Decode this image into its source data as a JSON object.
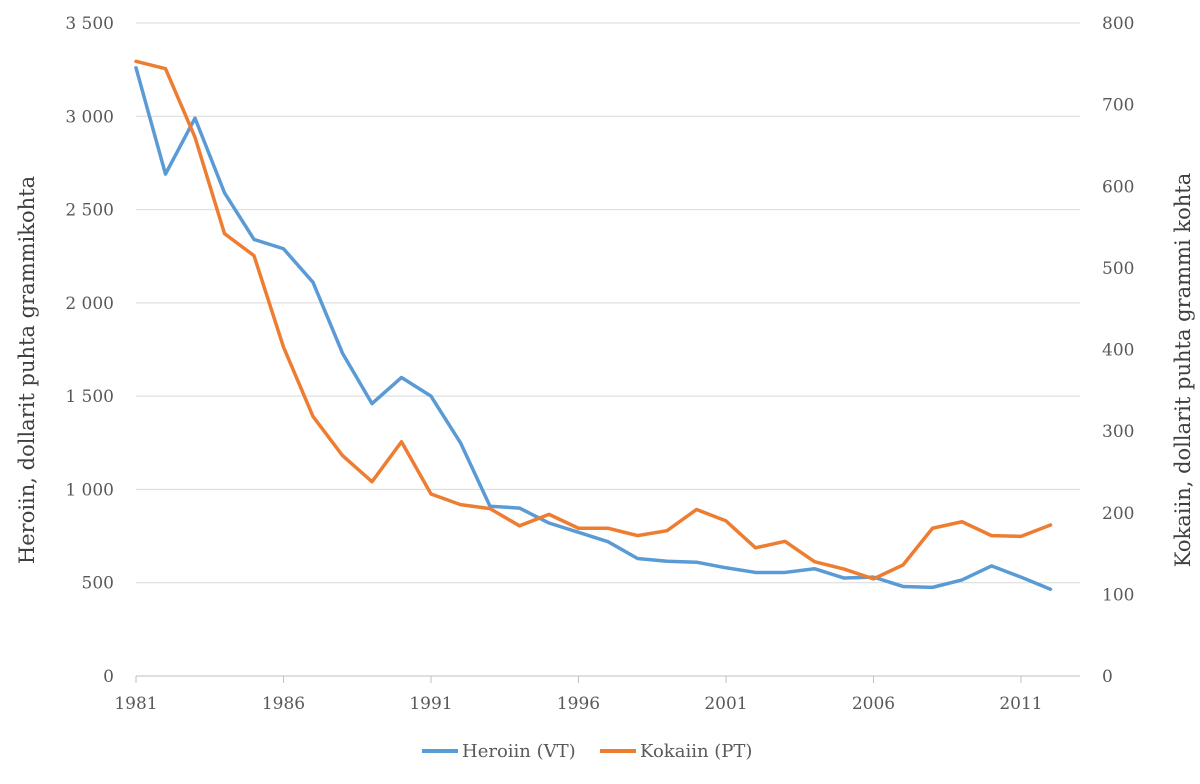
{
  "chart_data": {
    "type": "line",
    "title": "",
    "xlabel": "",
    "ylabel_left": "Heroiin, dollarit puhta grammikohta",
    "ylabel_right": "Kokaiin, dollarit puhta grammi kohta",
    "x": [
      1981,
      1982,
      1983,
      1984,
      1985,
      1986,
      1987,
      1988,
      1989,
      1990,
      1991,
      1992,
      1993,
      1994,
      1995,
      1996,
      1997,
      1998,
      1999,
      2000,
      2001,
      2002,
      2003,
      2004,
      2005,
      2006,
      2007,
      2008,
      2009,
      2010,
      2011,
      2012
    ],
    "xlim": [
      1981,
      2013
    ],
    "xticks": [
      1981,
      1986,
      1991,
      1996,
      2001,
      2006,
      2011
    ],
    "xtick_labels": [
      "1981",
      "1986",
      "1991",
      "1996",
      "2001",
      "2006",
      "2011"
    ],
    "ylim_left": [
      0,
      3500
    ],
    "yticks_left": [
      0,
      500,
      1000,
      1500,
      2000,
      2500,
      3000,
      3500
    ],
    "ytick_labels_left": [
      "0",
      "500",
      "1 000",
      "1 500",
      "2 000",
      "2 500",
      "3 000",
      "3 500"
    ],
    "ylim_right": [
      0,
      800
    ],
    "yticks_right": [
      0,
      100,
      200,
      300,
      400,
      500,
      600,
      700,
      800
    ],
    "ytick_labels_right": [
      "0",
      "100",
      "200",
      "300",
      "400",
      "500",
      "600",
      "700",
      "800"
    ],
    "grid": true,
    "legend_position": "bottom-center",
    "series": [
      {
        "name": "Heroiin (VT)",
        "axis": "left",
        "color": "#5b9bd5",
        "values": [
          3260,
          2690,
          2990,
          2590,
          2340,
          2290,
          2110,
          1730,
          1460,
          1600,
          1500,
          1250,
          910,
          900,
          820,
          770,
          720,
          630,
          615,
          610,
          580,
          555,
          555,
          575,
          525,
          530,
          480,
          475,
          515,
          590,
          530,
          465
        ]
      },
      {
        "name": "Kokaiin (PT)",
        "axis": "right",
        "color": "#ed7d31",
        "values": [
          753,
          744,
          660,
          542,
          515,
          403,
          318,
          270,
          238,
          287,
          223,
          210,
          205,
          184,
          198,
          181,
          181,
          172,
          178,
          204,
          190,
          157,
          165,
          140,
          131,
          119,
          136,
          181,
          189,
          172,
          171,
          185
        ]
      }
    ]
  }
}
